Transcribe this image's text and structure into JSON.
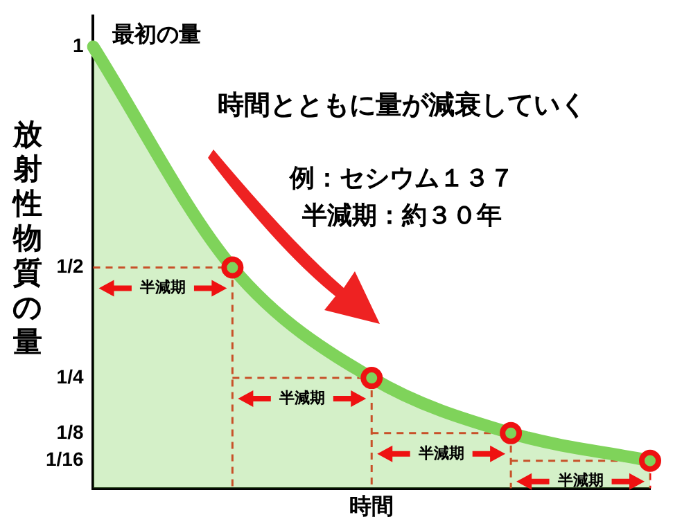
{
  "chart_data": {
    "type": "area",
    "ylabel": "放射性物質の量",
    "xlabel": "時間",
    "categories": [
      null,
      null,
      null,
      null,
      null
    ],
    "series": [
      {
        "color": "#7fd35a",
        "values": [
          1,
          0.5,
          0.25,
          0.125,
          0.0625
        ]
      }
    ],
    "ylim": [
      0,
      1.07
    ],
    "yticks": [
      {
        "value": 1,
        "label": "1"
      },
      {
        "value": 0.5,
        "label": "1/2"
      },
      {
        "value": 0.25,
        "label": "1/4"
      },
      {
        "value": 0.125,
        "label": "1/8"
      },
      {
        "value": 0.0625,
        "label": "1/16"
      }
    ],
    "tick_labels": "y",
    "grid": false,
    "legend": false,
    "annotations": [
      "最初の量",
      "時間とともに量が減衰していく",
      "例：セシウム１３７",
      "半減期：約３０年",
      "半減期",
      "半減期",
      "半減期",
      "半減期"
    ]
  }
}
